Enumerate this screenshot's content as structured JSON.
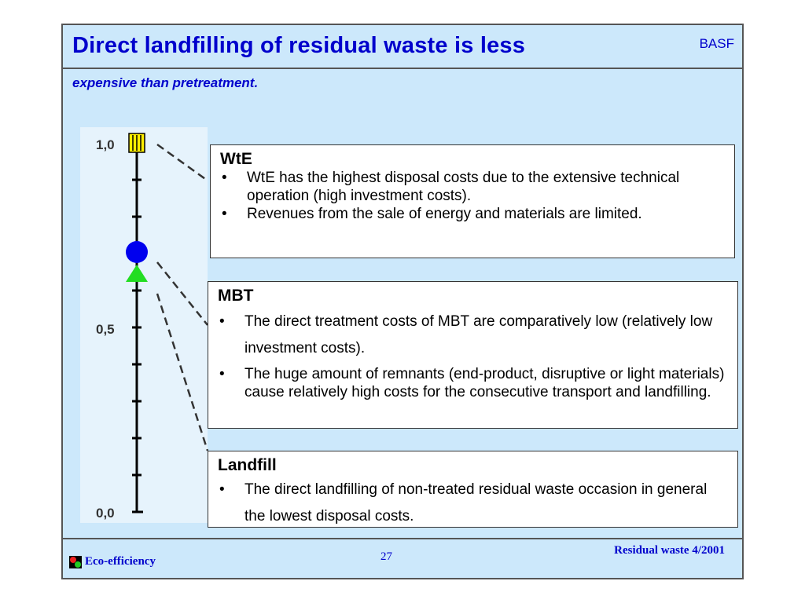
{
  "header": {
    "title": "Direct landfilling of residual waste is less",
    "brand": "BASF",
    "subtitle": "expensive than pretreatment."
  },
  "scale": {
    "top_label": "1,0",
    "mid_label": "0,5",
    "bottom_label": "0,0"
  },
  "boxes": {
    "wte": {
      "title": "WtE",
      "bullets": [
        "WtE has the highest disposal costs due to the extensive technical operation (high investment costs).",
        "Revenues from the sale of energy and materials are limited."
      ]
    },
    "mbt": {
      "title": "MBT",
      "bullets": [
        "The direct treatment costs of MBT are comparatively low (relatively low investment costs).",
        "The huge amount of remnants (end-product, disruptive or light materials) cause relatively high costs for the consecutive transport and landfilling."
      ]
    },
    "landfill": {
      "title": "Landfill",
      "bullets": [
        "The direct landfilling of non-treated residual waste occasion in general the lowest disposal costs."
      ]
    }
  },
  "footer": {
    "left": "Eco-efficiency",
    "page": "27",
    "right": "Residual waste 4/2001"
  },
  "bullet_char": "•"
}
